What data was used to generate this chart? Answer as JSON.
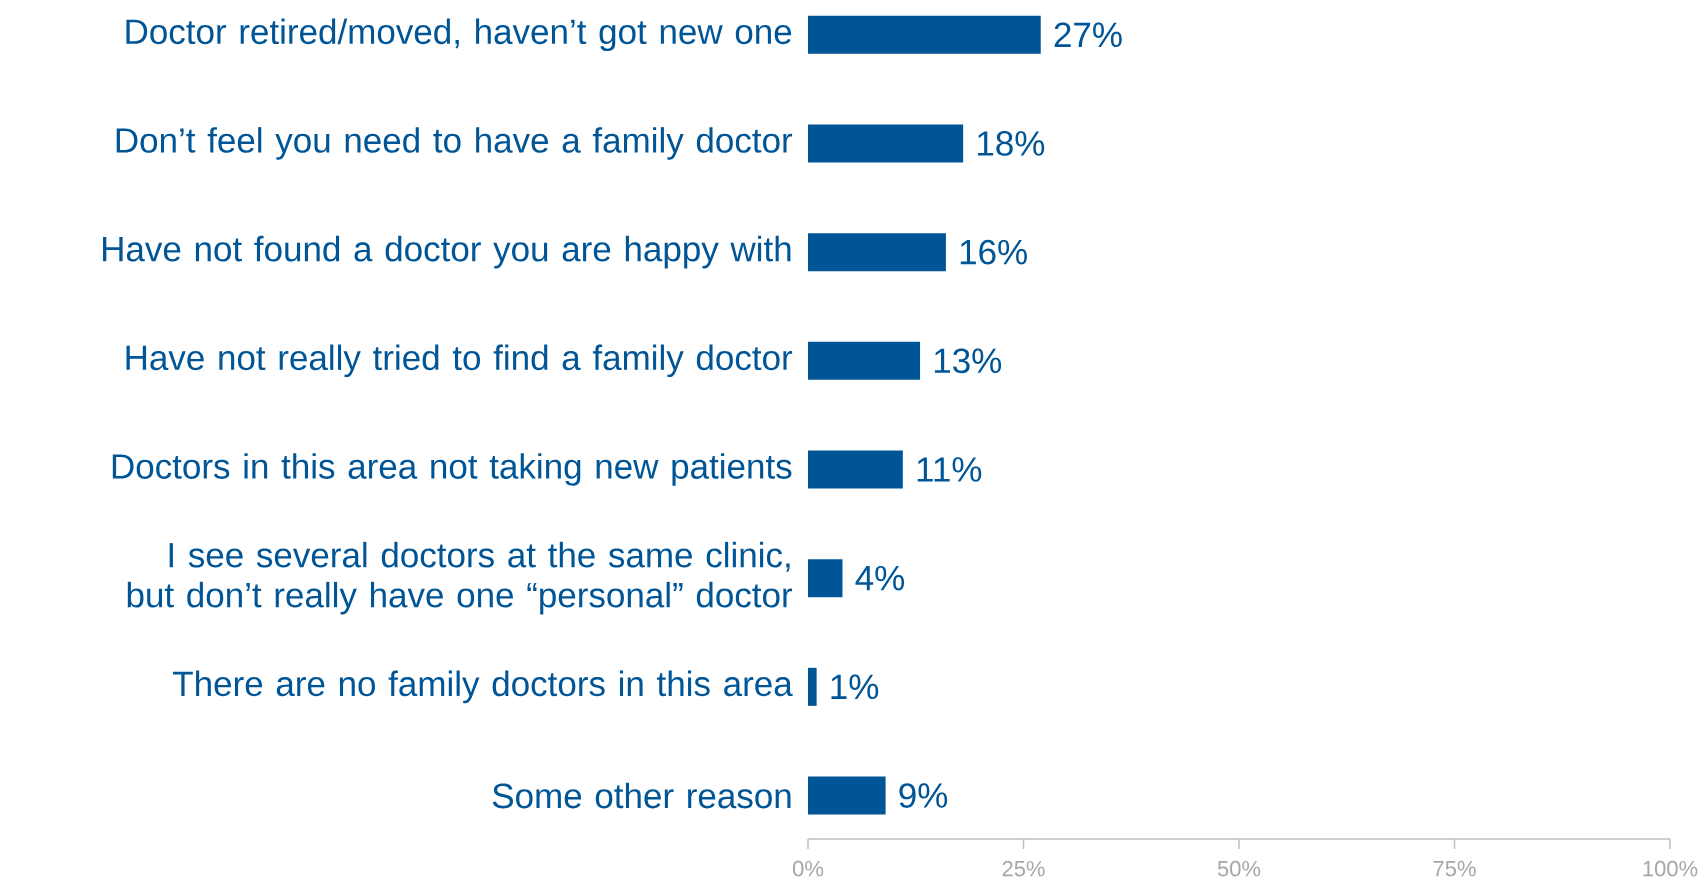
{
  "chart_data": {
    "type": "bar",
    "orientation": "horizontal",
    "categories": [
      "Doctor retired/moved, haven’t got new one",
      "Don’t feel you need to have a family doctor",
      "Have not found a doctor you are happy with",
      "Have not really tried to find a family doctor",
      "Doctors in this area not taking new patients",
      "I see several doctors at the same clinic, but don’t really have one “personal” doctor",
      "There are no family doctors in this area",
      "Some other reason"
    ],
    "values": [
      27,
      18,
      16,
      13,
      11,
      4,
      1,
      9
    ],
    "value_labels": [
      "27%",
      "18%",
      "16%",
      "13%",
      "11%",
      "4%",
      "1%",
      "9%"
    ],
    "color": "#005596",
    "xlim": [
      0,
      100
    ],
    "xticks": [
      {
        "value": 0,
        "label": "0%"
      },
      {
        "value": 25,
        "label": "25%"
      },
      {
        "value": 50,
        "label": "50%"
      },
      {
        "value": 75,
        "label": "75%"
      },
      {
        "value": 100,
        "label": "100%"
      }
    ]
  }
}
